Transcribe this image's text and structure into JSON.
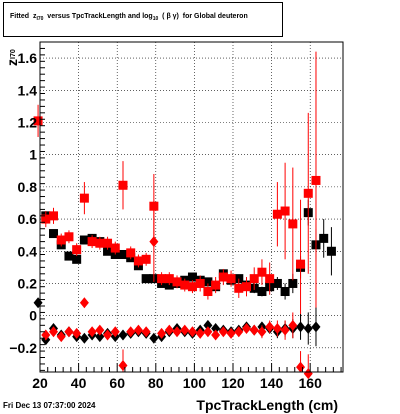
{
  "title": {
    "prefix": "Fitted",
    "var": "z",
    "var_sub": "I70",
    "middle": "versus TpcTrackLength and log",
    "log_sub": "10",
    "bg": "(  β  γ)",
    "suffix": "for Global deuteron"
  },
  "footer": {
    "date": "Fri Dec 13 07:37:00 2024"
  },
  "colors": {
    "black": "#000000",
    "red": "#ff0000",
    "grid": "#000000"
  },
  "chart_data": {
    "type": "scatter",
    "xlabel": "TpcTrackLength (cm)",
    "ylabel": "z",
    "ylabel_sub": "I70",
    "xlim": [
      20,
      177
    ],
    "ylim": [
      -0.35,
      1.7
    ],
    "xticks": [
      20,
      40,
      60,
      80,
      100,
      120,
      140,
      160
    ],
    "yticks": [
      -0.2,
      0,
      0.2,
      0.4,
      0.6,
      0.8,
      1,
      1.2,
      1.4,
      1.6
    ],
    "ytick_labels": [
      "−0.2",
      "0",
      "0.2",
      "0.4",
      "0.6",
      "0.8",
      "1",
      "1.2",
      "1.4",
      "1.6"
    ],
    "grid": true,
    "series": [
      {
        "marker": "square",
        "color": "#000000",
        "points": [
          [
            23,
            0.62,
            0.02
          ],
          [
            27,
            0.51,
            0.02
          ],
          [
            31,
            0.44,
            0.02
          ],
          [
            35,
            0.37,
            0.02
          ],
          [
            39,
            0.35,
            0.02
          ],
          [
            43,
            0.47,
            0.02
          ],
          [
            47,
            0.48,
            0.02
          ],
          [
            51,
            0.46,
            0.02
          ],
          [
            55,
            0.4,
            0.02
          ],
          [
            59,
            0.38,
            0.02
          ],
          [
            63,
            0.38,
            0.02
          ],
          [
            67,
            0.36,
            0.02
          ],
          [
            71,
            0.31,
            0.02
          ],
          [
            75,
            0.23,
            0.02
          ],
          [
            79,
            0.23,
            0.02
          ],
          [
            83,
            0.2,
            0.02
          ],
          [
            87,
            0.19,
            0.02
          ],
          [
            91,
            0.2,
            0.02
          ],
          [
            95,
            0.22,
            0.02
          ],
          [
            99,
            0.24,
            0.02
          ],
          [
            103,
            0.22,
            0.02
          ],
          [
            107,
            0.21,
            0.02
          ],
          [
            111,
            0.18,
            0.02
          ],
          [
            115,
            0.26,
            0.02
          ],
          [
            119,
            0.22,
            0.02
          ],
          [
            123,
            0.23,
            0.02
          ],
          [
            127,
            0.19,
            0.03
          ],
          [
            131,
            0.17,
            0.03
          ],
          [
            135,
            0.15,
            0.03
          ],
          [
            139,
            0.18,
            0.03
          ],
          [
            143,
            0.2,
            0.04
          ],
          [
            147,
            0.15,
            0.05
          ],
          [
            151,
            0.2,
            0.06
          ],
          [
            155,
            0.3,
            0.07
          ],
          [
            159,
            0.64,
            0.08
          ],
          [
            163,
            0.44,
            0.1
          ],
          [
            167,
            0.48,
            0.12
          ],
          [
            171,
            0.4,
            0.15
          ]
        ]
      },
      {
        "marker": "square",
        "color": "#ff0000",
        "points": [
          [
            19,
            1.21,
            0.1
          ],
          [
            23,
            0.6,
            0.05
          ],
          [
            27,
            0.62,
            0.05
          ],
          [
            31,
            0.47,
            0.04
          ],
          [
            35,
            0.49,
            0.04
          ],
          [
            39,
            0.41,
            0.04
          ],
          [
            43,
            0.73,
            0.1
          ],
          [
            47,
            0.46,
            0.04
          ],
          [
            51,
            0.45,
            0.04
          ],
          [
            55,
            0.45,
            0.04
          ],
          [
            59,
            0.42,
            0.04
          ],
          [
            63,
            0.81,
            0.15
          ],
          [
            67,
            0.39,
            0.04
          ],
          [
            71,
            0.34,
            0.04
          ],
          [
            75,
            0.35,
            0.04
          ],
          [
            79,
            0.68,
            0.2
          ],
          [
            83,
            0.23,
            0.04
          ],
          [
            87,
            0.23,
            0.04
          ],
          [
            91,
            0.21,
            0.04
          ],
          [
            95,
            0.19,
            0.04
          ],
          [
            99,
            0.18,
            0.04
          ],
          [
            103,
            0.2,
            0.05
          ],
          [
            107,
            0.15,
            0.05
          ],
          [
            111,
            0.19,
            0.05
          ],
          [
            115,
            0.24,
            0.05
          ],
          [
            119,
            0.23,
            0.05
          ],
          [
            123,
            0.17,
            0.06
          ],
          [
            127,
            0.18,
            0.06
          ],
          [
            131,
            0.23,
            0.07
          ],
          [
            135,
            0.27,
            0.08
          ],
          [
            139,
            0.23,
            0.1
          ],
          [
            143,
            0.63,
            0.2
          ],
          [
            147,
            0.65,
            0.3
          ],
          [
            151,
            0.57,
            0.35
          ],
          [
            155,
            0.32,
            0.4
          ],
          [
            159,
            0.76,
            0.5
          ],
          [
            163,
            0.84,
            0.8
          ]
        ]
      },
      {
        "marker": "diamond",
        "color": "#000000",
        "points": [
          [
            19,
            0.08,
            0.02
          ],
          [
            23,
            -0.15,
            0.02
          ],
          [
            27,
            -0.08,
            0.02
          ],
          [
            31,
            -0.12,
            0.02
          ],
          [
            35,
            -0.1,
            0.02
          ],
          [
            39,
            -0.13,
            0.02
          ],
          [
            43,
            -0.14,
            0.02
          ],
          [
            47,
            -0.12,
            0.02
          ],
          [
            51,
            -0.13,
            0.02
          ],
          [
            55,
            -0.11,
            0.02
          ],
          [
            59,
            -0.13,
            0.02
          ],
          [
            63,
            -0.12,
            0.02
          ],
          [
            67,
            -0.11,
            0.02
          ],
          [
            71,
            -0.1,
            0.02
          ],
          [
            75,
            -0.11,
            0.02
          ],
          [
            79,
            -0.14,
            0.02
          ],
          [
            83,
            -0.13,
            0.02
          ],
          [
            87,
            -0.1,
            0.02
          ],
          [
            91,
            -0.08,
            0.02
          ],
          [
            95,
            -0.1,
            0.02
          ],
          [
            99,
            -0.11,
            0.02
          ],
          [
            103,
            -0.09,
            0.02
          ],
          [
            107,
            -0.06,
            0.02
          ],
          [
            111,
            -0.08,
            0.02
          ],
          [
            115,
            -0.09,
            0.02
          ],
          [
            119,
            -0.1,
            0.02
          ],
          [
            123,
            -0.09,
            0.02
          ],
          [
            127,
            -0.07,
            0.02
          ],
          [
            131,
            -0.09,
            0.03
          ],
          [
            135,
            -0.07,
            0.03
          ],
          [
            139,
            -0.08,
            0.03
          ],
          [
            143,
            -0.1,
            0.04
          ],
          [
            147,
            -0.08,
            0.05
          ],
          [
            151,
            -0.08,
            0.06
          ],
          [
            155,
            -0.07,
            0.08
          ],
          [
            159,
            -0.08,
            0.1
          ],
          [
            163,
            -0.07,
            0.12
          ]
        ]
      },
      {
        "marker": "diamond",
        "color": "#ff0000",
        "points": [
          [
            23,
            -0.12,
            0.02
          ],
          [
            27,
            -0.1,
            0.02
          ],
          [
            31,
            -0.13,
            0.02
          ],
          [
            35,
            -0.1,
            0.02
          ],
          [
            39,
            -0.11,
            0.02
          ],
          [
            43,
            0.08,
            0.03
          ],
          [
            47,
            -0.1,
            0.02
          ],
          [
            51,
            -0.09,
            0.02
          ],
          [
            55,
            -0.12,
            0.02
          ],
          [
            59,
            -0.1,
            0.02
          ],
          [
            63,
            -0.31,
            0.1
          ],
          [
            67,
            -0.1,
            0.02
          ],
          [
            71,
            -0.09,
            0.02
          ],
          [
            75,
            -0.1,
            0.02
          ],
          [
            79,
            0.46,
            0.25
          ],
          [
            83,
            -0.11,
            0.02
          ],
          [
            87,
            -0.09,
            0.02
          ],
          [
            91,
            -0.1,
            0.02
          ],
          [
            95,
            -0.09,
            0.02
          ],
          [
            99,
            -0.1,
            0.02
          ],
          [
            103,
            -0.11,
            0.02
          ],
          [
            107,
            -0.1,
            0.02
          ],
          [
            111,
            -0.12,
            0.02
          ],
          [
            115,
            -0.1,
            0.02
          ],
          [
            119,
            -0.11,
            0.03
          ],
          [
            123,
            -0.1,
            0.03
          ],
          [
            127,
            -0.08,
            0.03
          ],
          [
            131,
            -0.09,
            0.03
          ],
          [
            135,
            -0.1,
            0.04
          ],
          [
            139,
            -0.07,
            0.04
          ],
          [
            143,
            -0.08,
            0.05
          ],
          [
            147,
            -0.09,
            0.06
          ],
          [
            151,
            -0.06,
            0.08
          ],
          [
            155,
            -0.32,
            0.1
          ],
          [
            159,
            -0.36,
            0.12
          ]
        ]
      }
    ]
  }
}
